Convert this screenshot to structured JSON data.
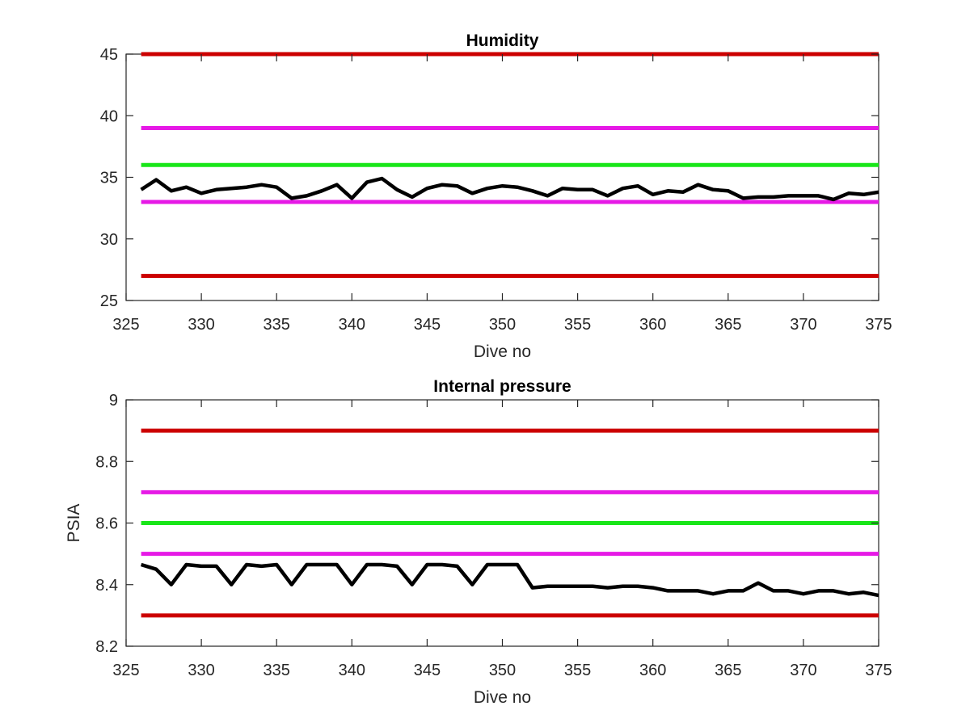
{
  "chart_data": [
    {
      "type": "line",
      "title": "Humidity",
      "xlabel": "Dive no",
      "ylabel": "",
      "xlim": [
        325,
        375
      ],
      "ylim": [
        25,
        45
      ],
      "xticks": [
        "325",
        "330",
        "335",
        "340",
        "345",
        "350",
        "355",
        "360",
        "365",
        "370",
        "375"
      ],
      "yticks": [
        "25",
        "30",
        "35",
        "40",
        "45"
      ],
      "grid": false,
      "threshold_lines": [
        {
          "y": 45,
          "color": "#cc0000"
        },
        {
          "y": 39,
          "color": "#e619e6"
        },
        {
          "y": 36,
          "color": "#19e619"
        },
        {
          "y": 33,
          "color": "#e619e6"
        },
        {
          "y": 27,
          "color": "#cc0000"
        }
      ],
      "series": [
        {
          "color": "#000000",
          "x": [
            326,
            327,
            328,
            329,
            330,
            331,
            332,
            333,
            334,
            335,
            336,
            337,
            338,
            339,
            340,
            341,
            342,
            343,
            344,
            345,
            346,
            347,
            348,
            349,
            350,
            351,
            352,
            353,
            354,
            355,
            356,
            357,
            358,
            359,
            360,
            361,
            362,
            363,
            364,
            365,
            366,
            367,
            368,
            369,
            370,
            371,
            372,
            373,
            374,
            375
          ],
          "y": [
            34.0,
            34.8,
            33.9,
            34.2,
            33.7,
            34.0,
            34.1,
            34.2,
            34.4,
            34.2,
            33.3,
            33.5,
            33.9,
            34.4,
            33.3,
            34.6,
            34.9,
            34.0,
            33.4,
            34.1,
            34.4,
            34.3,
            33.7,
            34.1,
            34.3,
            34.2,
            33.9,
            33.5,
            34.1,
            34.0,
            34.0,
            33.5,
            34.1,
            34.3,
            33.6,
            33.9,
            33.8,
            34.4,
            34.0,
            33.9,
            33.3,
            33.4,
            33.4,
            33.5,
            33.5,
            33.5,
            33.2,
            33.7,
            33.6,
            33.8
          ]
        }
      ]
    },
    {
      "type": "line",
      "title": "Internal pressure",
      "xlabel": "Dive no",
      "ylabel": "PSIA",
      "xlim": [
        325,
        375
      ],
      "ylim": [
        8.2,
        9.0
      ],
      "xticks": [
        "325",
        "330",
        "335",
        "340",
        "345",
        "350",
        "355",
        "360",
        "365",
        "370",
        "375"
      ],
      "yticks": [
        "8.2",
        "8.4",
        "8.6",
        "8.8",
        "9"
      ],
      "grid": false,
      "threshold_lines": [
        {
          "y": 8.9,
          "color": "#cc0000"
        },
        {
          "y": 8.7,
          "color": "#e619e6"
        },
        {
          "y": 8.6,
          "color": "#19e619"
        },
        {
          "y": 8.5,
          "color": "#e619e6"
        },
        {
          "y": 8.3,
          "color": "#cc0000"
        }
      ],
      "series": [
        {
          "color": "#000000",
          "x": [
            326,
            327,
            328,
            329,
            330,
            331,
            332,
            333,
            334,
            335,
            336,
            337,
            338,
            339,
            340,
            341,
            342,
            343,
            344,
            345,
            346,
            347,
            348,
            349,
            350,
            351,
            352,
            353,
            354,
            355,
            356,
            357,
            358,
            359,
            360,
            361,
            362,
            363,
            364,
            365,
            366,
            367,
            368,
            369,
            370,
            371,
            372,
            373,
            374,
            375
          ],
          "y": [
            8.465,
            8.45,
            8.4,
            8.465,
            8.46,
            8.46,
            8.4,
            8.465,
            8.46,
            8.465,
            8.4,
            8.465,
            8.465,
            8.465,
            8.4,
            8.465,
            8.465,
            8.46,
            8.4,
            8.465,
            8.465,
            8.46,
            8.4,
            8.465,
            8.465,
            8.465,
            8.39,
            8.395,
            8.395,
            8.395,
            8.395,
            8.39,
            8.395,
            8.395,
            8.39,
            8.38,
            8.38,
            8.38,
            8.37,
            8.38,
            8.38,
            8.405,
            8.38,
            8.38,
            8.37,
            8.38,
            8.38,
            8.37,
            8.375,
            8.365
          ]
        }
      ]
    }
  ]
}
